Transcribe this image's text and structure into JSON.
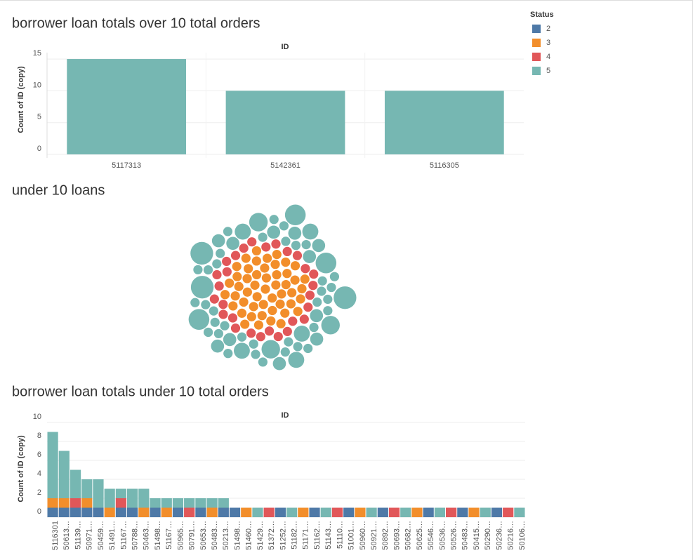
{
  "legend": {
    "title": "Status"
  },
  "chart_data": [
    {
      "type": "bar",
      "title": "borrower loan totals over 10 total orders",
      "x_label": "ID",
      "y_label": "Count of ID (copy)",
      "categories": [
        "5117313",
        "5142361",
        "5116305"
      ],
      "values": [
        15,
        10,
        10
      ],
      "color": "#76b7b2",
      "ylim": [
        0,
        16
      ],
      "yticks": [
        0,
        5,
        10,
        15
      ],
      "grid": true
    },
    {
      "type": "bubble",
      "title": "under 10 loans",
      "values": [
        1,
        1,
        1,
        1,
        1,
        1,
        1,
        1,
        1,
        1,
        1,
        1,
        1,
        1,
        1,
        1,
        1,
        1,
        1,
        1,
        1,
        1,
        1,
        1,
        1,
        1,
        1,
        1,
        1,
        1,
        1,
        1,
        1,
        1,
        1,
        1,
        1,
        1,
        1,
        1,
        1,
        1,
        1,
        1,
        1,
        1,
        1,
        1,
        1,
        1,
        1,
        1,
        1,
        1,
        1,
        1,
        1,
        1,
        1,
        1,
        1,
        1,
        1,
        1,
        1,
        1,
        1,
        1,
        1,
        1,
        1,
        1,
        1,
        1,
        1,
        1,
        1,
        1,
        1,
        1,
        2,
        1,
        3,
        1,
        1,
        2,
        4,
        1,
        1,
        2,
        1,
        6,
        1,
        2,
        1,
        1,
        3,
        1,
        5,
        1,
        2,
        1,
        1,
        4,
        1,
        1,
        2,
        1,
        3,
        1,
        1,
        6,
        1,
        2,
        1,
        1,
        5,
        1,
        1,
        2,
        1,
        3,
        1,
        4,
        1,
        1,
        2,
        1,
        6,
        1,
        1,
        3,
        2,
        1,
        5,
        1,
        2,
        1
      ],
      "status": [
        "3",
        "3",
        "3",
        "3",
        "3",
        "3",
        "3",
        "3",
        "3",
        "3",
        "3",
        "3",
        "3",
        "3",
        "3",
        "3",
        "3",
        "3",
        "3",
        "3",
        "3",
        "3",
        "3",
        "3",
        "3",
        "3",
        "3",
        "3",
        "3",
        "3",
        "3",
        "3",
        "3",
        "3",
        "3",
        "3",
        "3",
        "3",
        "3",
        "3",
        "3",
        "3",
        "3",
        "3",
        "3",
        "3",
        "3",
        "3",
        "3",
        "3",
        "4",
        "4",
        "4",
        "4",
        "4",
        "4",
        "4",
        "4",
        "4",
        "4",
        "4",
        "4",
        "4",
        "4",
        "4",
        "4",
        "4",
        "4",
        "4",
        "4",
        "4",
        "4",
        "4",
        "4",
        "4",
        "4",
        "4",
        "4",
        "5",
        "5",
        "5",
        "5",
        "5",
        "5",
        "5",
        "5",
        "5",
        "5",
        "5",
        "5",
        "5",
        "5",
        "5",
        "5",
        "5",
        "5",
        "5",
        "5",
        "5",
        "5",
        "5",
        "5",
        "5",
        "5",
        "5",
        "5",
        "5",
        "5",
        "5",
        "5",
        "5",
        "5",
        "5",
        "5",
        "5",
        "5",
        "5",
        "5",
        "5",
        "5",
        "5",
        "5",
        "5",
        "5",
        "5",
        "5",
        "5",
        "5",
        "5",
        "5",
        "5",
        "5",
        "5",
        "5",
        "5",
        "5",
        "5",
        "5"
      ]
    },
    {
      "type": "stacked_bar",
      "title": "borrower loan totals under 10 total orders",
      "x_label": "ID",
      "y_label": "Count of ID (copy)",
      "categories": [
        "5116301",
        "50613…",
        "51139…",
        "50971…",
        "50459…",
        "51491…",
        "51167…",
        "50788…",
        "50463…",
        "51498…",
        "51167…",
        "50965…",
        "50791…",
        "50653…",
        "50483…",
        "50213…",
        "51498…",
        "51460…",
        "51429…",
        "51372…",
        "51252…",
        "51182…",
        "51171…",
        "51162…",
        "51143…",
        "51110…",
        "51001…",
        "50960…",
        "50921…",
        "50892…",
        "50693…",
        "50682…",
        "50625…",
        "50546…",
        "50536…",
        "50526…",
        "50483…",
        "50415…",
        "50290…",
        "50236…",
        "50216…",
        "50106…"
      ],
      "series": [
        {
          "name": "2",
          "color": "#4e79a7",
          "values": [
            1,
            1,
            1,
            1,
            1,
            0,
            1,
            1,
            0,
            1,
            0,
            1,
            0,
            1,
            0,
            1,
            1,
            0,
            0,
            0,
            1,
            0,
            0,
            1,
            0,
            0,
            1,
            0,
            0,
            1,
            0,
            0,
            0,
            1,
            0,
            0,
            1,
            0,
            0,
            1,
            0,
            0
          ]
        },
        {
          "name": "3",
          "color": "#f28e2b",
          "values": [
            1,
            1,
            0,
            1,
            0,
            1,
            0,
            0,
            1,
            0,
            1,
            0,
            0,
            0,
            1,
            0,
            0,
            1,
            0,
            0,
            0,
            0,
            1,
            0,
            0,
            0,
            0,
            1,
            0,
            0,
            0,
            0,
            1,
            0,
            0,
            0,
            0,
            1,
            0,
            0,
            0,
            0
          ]
        },
        {
          "name": "4",
          "color": "#e15759",
          "values": [
            0,
            0,
            1,
            0,
            0,
            0,
            1,
            0,
            0,
            0,
            0,
            0,
            1,
            0,
            0,
            0,
            0,
            0,
            0,
            1,
            0,
            0,
            0,
            0,
            0,
            1,
            0,
            0,
            0,
            0,
            1,
            0,
            0,
            0,
            0,
            1,
            0,
            0,
            0,
            0,
            1,
            0
          ]
        },
        {
          "name": "5",
          "color": "#76b7b2",
          "values": [
            7,
            5,
            3,
            2,
            3,
            2,
            1,
            2,
            2,
            1,
            1,
            1,
            1,
            1,
            1,
            1,
            0,
            0,
            1,
            0,
            0,
            1,
            0,
            0,
            1,
            0,
            0,
            0,
            1,
            0,
            0,
            1,
            0,
            0,
            1,
            0,
            0,
            0,
            1,
            0,
            0,
            1
          ]
        }
      ],
      "ylim": [
        0,
        10
      ],
      "yticks": [
        0,
        2,
        4,
        6,
        8,
        10
      ],
      "grid": true
    }
  ]
}
